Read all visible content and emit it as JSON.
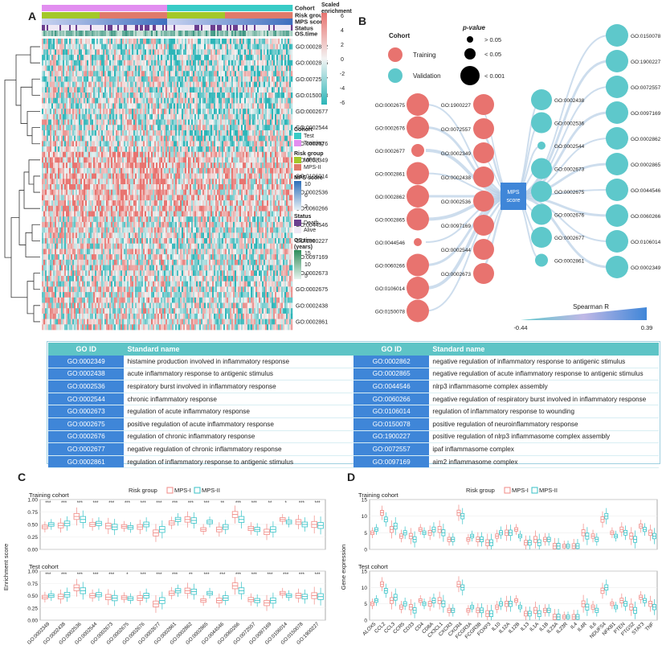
{
  "panels": {
    "a": "A",
    "b": "B",
    "c": "C",
    "d": "D"
  },
  "heatmap": {
    "annotations": [
      "Cohort",
      "Risk group",
      "MPS score",
      "Status",
      "OS.time"
    ],
    "scale_title": "Scaled\nenrichment score",
    "scale_ticks": [
      "6",
      "4",
      "2",
      "0",
      "-2",
      "-4",
      "-6"
    ],
    "rows": [
      "GO:0002862",
      "GO:0002865",
      "GO:0072557",
      "GO:0150078",
      "GO:0002677",
      "GO:0002544",
      "GO:0002676",
      "GO:0002349",
      "GO:0106014",
      "GO:0002536",
      "GO:0060266",
      "GO:0044546",
      "GO:1900227",
      "GO:0097169",
      "GO:0002673",
      "GO:0002675",
      "GO:0002438",
      "GO:0002861"
    ],
    "legend": {
      "cohort_title": "Cohort",
      "cohort_items": [
        "Test",
        "Training"
      ],
      "risk_title": "Risk group",
      "risk_items": [
        "MPS-I",
        "MPS-II"
      ],
      "mps_title": "MPS score",
      "mps_ticks": [
        "10",
        "6",
        "2"
      ],
      "status_title": "Status",
      "status_items": [
        "Death",
        "Alive"
      ],
      "os_title": "OS.time\n(years)",
      "os_ticks": [
        "15",
        "10",
        "5"
      ]
    },
    "colors": {
      "high": "#e8736f",
      "mid": "#f3f3f3",
      "low": "#2bb5b8",
      "test": "#38cbc6",
      "training": "#e28ef0",
      "mps1": "#a3c829",
      "mps2": "#e07a6a"
    }
  },
  "network": {
    "cohort_title": "Cohort",
    "cohort_items": [
      "Training",
      "Validation"
    ],
    "pvalue_title": "p-value",
    "pvalue_items": [
      "> 0.05",
      "< 0.05",
      "< 0.001"
    ],
    "center_label": "MPS\nscore",
    "spearman_title": "Spearman R",
    "spearman_min": "-0.44",
    "spearman_max": "0.39",
    "training_left": [
      "GO:0002675",
      "GO:0002676",
      "GO:0002677",
      "GO:0002861",
      "GO:0002862",
      "GO:0002865",
      "GO:0044546",
      "GO:0060266",
      "GO:0106014",
      "GO:0150078"
    ],
    "training_mid": [
      "GO:1900227",
      "GO:0072557",
      "GO:0002349",
      "GO:0002438",
      "GO:0002536",
      "GO:0097169",
      "GO:0002544",
      "GO:0002673"
    ],
    "validation_mid": [
      "GO:0002438",
      "GO:0002536",
      "GO:0002544",
      "GO:0002673",
      "GO:0002675",
      "GO:0002676",
      "GO:0002677",
      "GO:0002861"
    ],
    "validation_right": [
      "GO:0150078",
      "GO:1900227",
      "GO:0072557",
      "GO:0097169",
      "GO:0002862",
      "GO:0002865",
      "GO:0044546",
      "GO:0060266",
      "GO:0106014",
      "GO:0002349"
    ]
  },
  "table": {
    "headers": [
      "GO ID",
      "Standard name",
      "GO ID",
      "Standard name"
    ],
    "rows": [
      [
        "GO:0002349",
        "histamine production involved in inflammatory response",
        "GO:0002862",
        "negative regulation of inflammatory response to antigenic stimulus"
      ],
      [
        "GO:0002438",
        "acute inflammatory response to antigenic stimulus",
        "GO:0002865",
        "negative regulation of acute inflammatory response to antigenic stimulus"
      ],
      [
        "GO:0002536",
        "respiratory burst involved in inflammatory response",
        "GO:0044546",
        "nlrp3 inflammasome complex assembly"
      ],
      [
        "GO:0002544",
        "chronic inflammatory response",
        "GO:0060266",
        "negative regulation of respiratory burst involved in inflammatory response"
      ],
      [
        "GO:0002673",
        "regulation of acute inflammatory response",
        "GO:0106014",
        "regulation of inflammatory response to wounding"
      ],
      [
        "GO:0002675",
        "positive regulation of acute inflammatory response",
        "GO:0150078",
        "positive regulation of neuroinflammatory response"
      ],
      [
        "GO:0002676",
        "regulation of chronic inflammatory response",
        "GO:1900227",
        "positive regulation of nlrp3 inflammasome complex assembly"
      ],
      [
        "GO:0002677",
        "negative regulation of chronic inflammatory response",
        "GO:0072557",
        "ipaf inflammasome complex"
      ],
      [
        "GO:0002861",
        "regulation of inflammatory response to antigenic stimulus",
        "GO:0097169",
        "aim2 inflammasome complex"
      ]
    ]
  },
  "chart_data": [
    {
      "type": "box",
      "panel": "C",
      "legend_title": "Risk group",
      "legend_items": [
        "MPS-I",
        "MPS-II"
      ],
      "ylabel": "Enrichment score",
      "ylim": [
        0,
        1
      ],
      "yticks": [
        "0.00",
        "0.25",
        "0.50",
        "0.75",
        "1.00"
      ],
      "subplots": [
        "Training cohort",
        "Test cohort"
      ],
      "categories": [
        "GO:0002349",
        "GO:0002438",
        "GO:0002536",
        "GO:0002544",
        "GO:0002673",
        "GO:0002675",
        "GO:0002676",
        "GO:0002677",
        "GO:0002861",
        "GO:0002862",
        "GO:0002865",
        "GO:0044546",
        "GO:0060266",
        "GO:0072557",
        "GO:0097169",
        "GO:0106014",
        "GO:0150078",
        "GO:1900227"
      ],
      "training_sig": [
        "***",
        "***",
        "***",
        "***",
        "***",
        "***",
        "***",
        "***",
        "***",
        "***",
        "***",
        "**",
        "***",
        "***",
        "**",
        "*",
        "***",
        "***"
      ],
      "test_sig": [
        "***",
        "***",
        "***",
        "***",
        "***",
        "*",
        "***",
        "***",
        "***",
        "**",
        "***",
        "***",
        "***",
        "***",
        "***",
        "***",
        "***",
        "***"
      ],
      "series": [
        {
          "name": "MPS-I",
          "medians_training": [
            0.45,
            0.48,
            0.66,
            0.5,
            0.47,
            0.46,
            0.45,
            0.33,
            0.53,
            0.6,
            0.4,
            0.4,
            0.7,
            0.42,
            0.35,
            0.6,
            0.55,
            0.5
          ],
          "medians_test": [
            0.47,
            0.48,
            0.66,
            0.5,
            0.47,
            0.46,
            0.45,
            0.33,
            0.55,
            0.6,
            0.4,
            0.4,
            0.7,
            0.42,
            0.35,
            0.55,
            0.5,
            0.5
          ]
        },
        {
          "name": "MPS-II",
          "medians_training": [
            0.5,
            0.52,
            0.6,
            0.52,
            0.45,
            0.44,
            0.5,
            0.4,
            0.6,
            0.58,
            0.55,
            0.45,
            0.6,
            0.4,
            0.4,
            0.55,
            0.5,
            0.48
          ],
          "medians_test": [
            0.5,
            0.52,
            0.6,
            0.52,
            0.45,
            0.44,
            0.5,
            0.4,
            0.6,
            0.58,
            0.55,
            0.45,
            0.6,
            0.4,
            0.4,
            0.5,
            0.48,
            0.48
          ]
        }
      ]
    },
    {
      "type": "box",
      "panel": "D",
      "legend_title": "Risk group",
      "legend_items": [
        "MPS-I",
        "MPS-II"
      ],
      "ylabel": "Gene expression",
      "ylim": [
        0,
        15
      ],
      "yticks": [
        "0",
        "5",
        "10",
        "15"
      ],
      "subplots": [
        "Training cohort",
        "Test cohort"
      ],
      "categories": [
        "ALOX5",
        "CCL2",
        "CCL3",
        "CCR5",
        "CD33",
        "CD4",
        "CD8A",
        "CX3CL1",
        "CXCR3",
        "CXCR4",
        "FCGR3A",
        "FCGR3B",
        "FOXP3",
        "IL10",
        "IL12A",
        "IL12B",
        "IL13",
        "IL1A",
        "IL1B",
        "IL23A",
        "IL23R",
        "IL4",
        "IL4R",
        "IL6",
        "NDUFS4",
        "NFKB1",
        "PTEN",
        "PTGS2",
        "STAT3",
        "TNF"
      ],
      "series": [
        {
          "name": "MPS-I",
          "medians": [
            5,
            11,
            6,
            4,
            4,
            6,
            5,
            6,
            3,
            11,
            3,
            3,
            2,
            4,
            5,
            6,
            2,
            3,
            3,
            1,
            1,
            1,
            5,
            4,
            9,
            5,
            6,
            4,
            7,
            5
          ]
        },
        {
          "name": "MPS-II",
          "medians": [
            6,
            9,
            7,
            5,
            3,
            5,
            6,
            5,
            3,
            10,
            4,
            3,
            2,
            5,
            5,
            4,
            2,
            2,
            3,
            1,
            1,
            1,
            4,
            3,
            10,
            4,
            5,
            3,
            6,
            4
          ]
        }
      ]
    }
  ]
}
